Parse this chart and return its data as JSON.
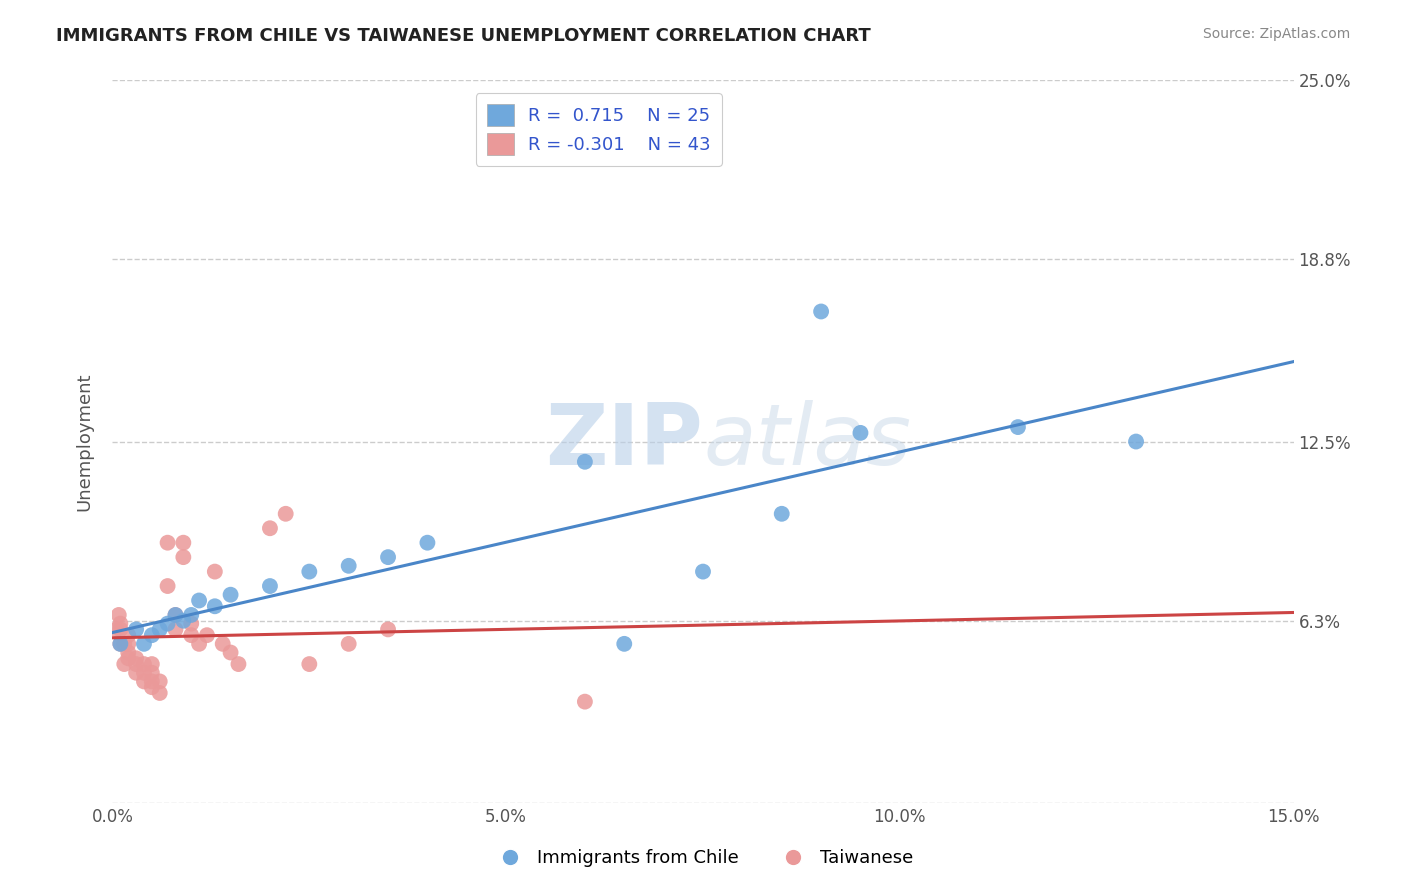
{
  "title": "IMMIGRANTS FROM CHILE VS TAIWANESE UNEMPLOYMENT CORRELATION CHART",
  "source": "Source: ZipAtlas.com",
  "ylabel": "Unemployment",
  "x_min": 0.0,
  "x_max": 0.15,
  "y_min": 0.0,
  "y_max": 0.25,
  "y_ticks": [
    0.0,
    0.063,
    0.125,
    0.188,
    0.25
  ],
  "y_tick_labels": [
    "",
    "6.3%",
    "12.5%",
    "18.8%",
    "25.0%"
  ],
  "x_ticks": [
    0.0,
    0.05,
    0.1,
    0.15
  ],
  "x_tick_labels": [
    "0.0%",
    "5.0%",
    "10.0%",
    "15.0%"
  ],
  "legend_label1": "Immigrants from Chile",
  "legend_label2": "Taiwanese",
  "R1": 0.715,
  "N1": 25,
  "R2": -0.301,
  "N2": 43,
  "blue_color": "#6fa8dc",
  "pink_color": "#ea9999",
  "blue_line_color": "#4a86c8",
  "pink_line_color": "#cc4444",
  "watermark_zip": "ZIP",
  "watermark_atlas": "atlas",
  "blue_scatter_x": [
    0.001,
    0.003,
    0.004,
    0.005,
    0.006,
    0.007,
    0.008,
    0.009,
    0.01,
    0.011,
    0.013,
    0.015,
    0.02,
    0.025,
    0.03,
    0.035,
    0.04,
    0.06,
    0.065,
    0.075,
    0.085,
    0.09,
    0.095,
    0.115,
    0.13
  ],
  "blue_scatter_y": [
    0.055,
    0.06,
    0.055,
    0.058,
    0.06,
    0.062,
    0.065,
    0.063,
    0.065,
    0.07,
    0.068,
    0.072,
    0.075,
    0.08,
    0.082,
    0.085,
    0.09,
    0.118,
    0.055,
    0.08,
    0.1,
    0.17,
    0.128,
    0.13,
    0.125
  ],
  "pink_scatter_x": [
    0.0005,
    0.0008,
    0.001,
    0.001,
    0.001,
    0.0015,
    0.0015,
    0.002,
    0.002,
    0.002,
    0.002,
    0.003,
    0.003,
    0.003,
    0.004,
    0.004,
    0.004,
    0.005,
    0.005,
    0.005,
    0.005,
    0.006,
    0.006,
    0.007,
    0.007,
    0.008,
    0.008,
    0.009,
    0.009,
    0.01,
    0.01,
    0.011,
    0.012,
    0.013,
    0.014,
    0.015,
    0.016,
    0.02,
    0.022,
    0.025,
    0.03,
    0.035,
    0.06
  ],
  "pink_scatter_y": [
    0.06,
    0.065,
    0.055,
    0.06,
    0.062,
    0.048,
    0.055,
    0.05,
    0.052,
    0.055,
    0.058,
    0.045,
    0.048,
    0.05,
    0.042,
    0.045,
    0.048,
    0.04,
    0.042,
    0.045,
    0.048,
    0.038,
    0.042,
    0.075,
    0.09,
    0.06,
    0.065,
    0.085,
    0.09,
    0.058,
    0.062,
    0.055,
    0.058,
    0.08,
    0.055,
    0.052,
    0.048,
    0.095,
    0.1,
    0.048,
    0.055,
    0.06,
    0.035
  ],
  "background_color": "#ffffff",
  "grid_color": "#cccccc"
}
